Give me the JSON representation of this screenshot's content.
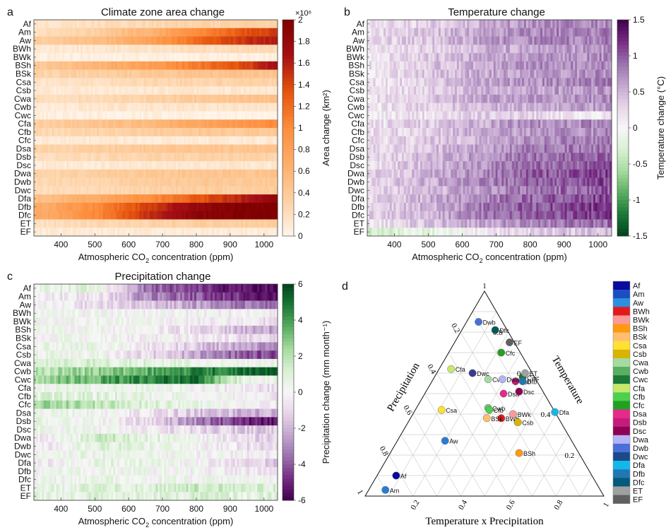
{
  "climate_zones": [
    "Af",
    "Am",
    "Aw",
    "BWh",
    "BWk",
    "BSh",
    "BSk",
    "Csa",
    "Csb",
    "Cwa",
    "Cwb",
    "Cwc",
    "Cfa",
    "Cfb",
    "Cfc",
    "Dsa",
    "Dsb",
    "Dsc",
    "Dwa",
    "Dwb",
    "Dwc",
    "Dfa",
    "Dfb",
    "Dfc",
    "ET",
    "EF"
  ],
  "chart_data": [
    {
      "panel": "a",
      "type": "heatmap",
      "title": "Climate zone area change",
      "xlabel_main": "Atmospheric CO",
      "xlabel_sub": "2",
      "xlabel_tail": " concentration (ppm)",
      "x_ticks": [
        "400",
        "500",
        "600",
        "700",
        "800",
        "900",
        "1000"
      ],
      "x_range": [
        320,
        1040
      ],
      "colorbar": {
        "label": "Area change (km²)",
        "exponent": "×10⁶",
        "ticks": [
          "2",
          "1.8",
          "1.6",
          "1.4",
          "1.2",
          "1",
          "0.8",
          "0.6",
          "0.4",
          "0.2",
          "0"
        ],
        "range": [
          0,
          2
        ],
        "colors": [
          "#fff5eb",
          "#fdd0a2",
          "#fdae6b",
          "#fd8d3c",
          "#e6550d",
          "#a50f15",
          "#7f0000"
        ]
      },
      "row_values_at_co2": {
        "co2": [
          350,
          500,
          650,
          800,
          950,
          1030
        ],
        "Af": [
          0.15,
          0.2,
          0.25,
          0.3,
          0.3,
          0.3
        ],
        "Am": [
          0.2,
          0.35,
          0.6,
          1.0,
          1.35,
          1.45
        ],
        "Aw": [
          0.35,
          0.5,
          0.75,
          1.2,
          1.5,
          1.6
        ],
        "BWh": [
          0.1,
          0.12,
          0.15,
          0.2,
          0.25,
          0.25
        ],
        "BWk": [
          0.05,
          0.05,
          0.05,
          0.05,
          0.05,
          0.05
        ],
        "BSh": [
          0.4,
          0.6,
          0.8,
          1.1,
          1.4,
          1.7
        ],
        "BSk": [
          0.3,
          0.35,
          0.4,
          0.45,
          0.45,
          0.45
        ],
        "Csa": [
          0.15,
          0.2,
          0.25,
          0.3,
          0.3,
          0.3
        ],
        "Csb": [
          0.1,
          0.1,
          0.12,
          0.12,
          0.12,
          0.12
        ],
        "Cwa": [
          0.2,
          0.25,
          0.3,
          0.4,
          0.45,
          0.5
        ],
        "Cwb": [
          0.1,
          0.12,
          0.15,
          0.15,
          0.15,
          0.15
        ],
        "Cwc": [
          0.05,
          0.05,
          0.05,
          0.03,
          0.01,
          0.02
        ],
        "Cfa": [
          0.35,
          0.45,
          0.55,
          0.75,
          0.9,
          1.0
        ],
        "Cfb": [
          0.25,
          0.3,
          0.35,
          0.4,
          0.4,
          0.4
        ],
        "Cfc": [
          0.1,
          0.1,
          0.1,
          0.1,
          0.1,
          0.1
        ],
        "Dsa": [
          0.3,
          0.35,
          0.4,
          0.45,
          0.45,
          0.45
        ],
        "Dsb": [
          0.2,
          0.25,
          0.3,
          0.3,
          0.3,
          0.3
        ],
        "Dsc": [
          0.1,
          0.1,
          0.12,
          0.12,
          0.12,
          0.12
        ],
        "Dwa": [
          0.3,
          0.35,
          0.4,
          0.45,
          0.45,
          0.45
        ],
        "Dwb": [
          0.25,
          0.3,
          0.35,
          0.4,
          0.4,
          0.4
        ],
        "Dwc": [
          0.2,
          0.25,
          0.3,
          0.35,
          0.35,
          0.35
        ],
        "Dfa": [
          0.5,
          0.7,
          0.95,
          1.3,
          1.6,
          1.8
        ],
        "Dfb": [
          0.7,
          1.0,
          1.4,
          1.8,
          2.0,
          2.0
        ],
        "Dfc": [
          0.7,
          1.0,
          1.5,
          1.9,
          2.0,
          2.0
        ],
        "ET": [
          0.2,
          0.25,
          0.3,
          0.35,
          0.35,
          0.35
        ],
        "EF": [
          0.1,
          0.1,
          0.1,
          0.1,
          0.1,
          0.1
        ]
      }
    },
    {
      "panel": "b",
      "type": "heatmap",
      "title": "Temperature change",
      "xlabel_main": "Atmospheric CO",
      "xlabel_sub": "2",
      "xlabel_tail": " concentration (ppm)",
      "x_ticks": [
        "400",
        "500",
        "600",
        "700",
        "800",
        "900",
        "1000"
      ],
      "x_range": [
        320,
        1040
      ],
      "colorbar": {
        "label": "Temperature change (°C)",
        "ticks": [
          "1.5",
          "1",
          "0.5",
          "0",
          "-0.5",
          "-1",
          "-1.5"
        ],
        "range": [
          -1.5,
          1.5
        ],
        "colors": [
          "#00441b",
          "#1b7837",
          "#5aae61",
          "#a6dba0",
          "#d9f0d3",
          "#f7f7f7",
          "#e7d4e8",
          "#c2a5cf",
          "#9970ab",
          "#762a83",
          "#40004b"
        ]
      },
      "row_values_at_co2": {
        "co2": [
          350,
          500,
          650,
          800,
          950,
          1030
        ],
        "Af": [
          0.15,
          0.3,
          0.55,
          0.7,
          0.75,
          0.8
        ],
        "Am": [
          0.25,
          0.4,
          0.6,
          0.75,
          0.8,
          0.85
        ],
        "Aw": [
          0.25,
          0.4,
          0.6,
          0.75,
          0.8,
          0.85
        ],
        "BWh": [
          0.15,
          0.3,
          0.5,
          0.6,
          0.65,
          0.7
        ],
        "BWk": [
          0.2,
          0.35,
          0.55,
          0.65,
          0.7,
          0.75
        ],
        "BSh": [
          0.2,
          0.35,
          0.55,
          0.7,
          0.75,
          0.8
        ],
        "BSk": [
          0.2,
          0.35,
          0.55,
          0.65,
          0.7,
          0.75
        ],
        "Csa": [
          0.2,
          0.35,
          0.55,
          0.7,
          0.75,
          0.8
        ],
        "Csb": [
          0.15,
          0.3,
          0.5,
          0.6,
          0.65,
          0.7
        ],
        "Cwa": [
          0.2,
          0.35,
          0.55,
          0.65,
          0.7,
          0.75
        ],
        "Cwb": [
          0.15,
          0.3,
          0.45,
          0.55,
          0.6,
          0.65
        ],
        "Cwc": [
          0.1,
          0.2,
          0.3,
          0.3,
          0.1,
          0.15
        ],
        "Cfa": [
          0.2,
          0.35,
          0.55,
          0.7,
          0.75,
          0.8
        ],
        "Cfb": [
          0.2,
          0.35,
          0.55,
          0.65,
          0.7,
          0.75
        ],
        "Cfc": [
          0.2,
          0.35,
          0.55,
          0.7,
          0.8,
          0.85
        ],
        "Dsa": [
          0.25,
          0.4,
          0.6,
          0.8,
          0.85,
          0.9
        ],
        "Dsb": [
          0.25,
          0.45,
          0.65,
          0.85,
          0.9,
          0.95
        ],
        "Dsc": [
          0.25,
          0.45,
          0.7,
          0.9,
          1.0,
          1.05
        ],
        "Dwa": [
          0.3,
          0.5,
          0.75,
          0.95,
          1.05,
          1.1
        ],
        "Dwb": [
          0.3,
          0.5,
          0.75,
          0.95,
          1.05,
          1.1
        ],
        "Dwc": [
          0.25,
          0.45,
          0.65,
          0.85,
          0.95,
          1.0
        ],
        "Dfa": [
          0.3,
          0.5,
          0.75,
          0.95,
          1.05,
          1.1
        ],
        "Dfb": [
          0.3,
          0.5,
          0.8,
          1.0,
          1.1,
          1.15
        ],
        "Dfc": [
          0.3,
          0.5,
          0.8,
          1.0,
          1.1,
          1.2
        ],
        "ET": [
          0.2,
          0.4,
          0.6,
          0.75,
          0.85,
          0.9
        ],
        "EF": [
          -0.3,
          -0.2,
          0.15,
          0.3,
          0.35,
          0.45
        ]
      }
    },
    {
      "panel": "c",
      "type": "heatmap",
      "title": "Precipitation change",
      "xlabel_main": "Atmospheric CO",
      "xlabel_sub": "2",
      "xlabel_tail": " concentration (ppm)",
      "x_ticks": [
        "400",
        "500",
        "600",
        "700",
        "800",
        "900",
        "1000"
      ],
      "x_range": [
        320,
        1040
      ],
      "colorbar": {
        "label": "Precipitation change (mm month⁻¹)",
        "ticks": [
          "6",
          "4",
          "2",
          "0",
          "-2",
          "-4",
          "-6"
        ],
        "range": [
          -6,
          6
        ],
        "colors": [
          "#40004b",
          "#762a83",
          "#9970ab",
          "#c2a5cf",
          "#e7d4e8",
          "#f7f7f7",
          "#d9f0d3",
          "#a6dba0",
          "#5aae61",
          "#1b7837",
          "#00441b"
        ]
      },
      "row_values_at_co2": {
        "co2": [
          350,
          500,
          650,
          800,
          950,
          1030
        ],
        "Af": [
          0.5,
          0.8,
          -3.5,
          -4.5,
          -5.5,
          -5.8
        ],
        "Am": [
          -0.5,
          -0.5,
          -3.0,
          -4.0,
          -5.0,
          -5.5
        ],
        "Aw": [
          -0.3,
          -0.8,
          -1.5,
          -2.5,
          -3.5,
          -4.0
        ],
        "BWh": [
          0.1,
          0.1,
          0.0,
          -0.1,
          -0.2,
          -0.3
        ],
        "BWk": [
          0.2,
          0.2,
          0.1,
          -0.2,
          -0.5,
          -0.8
        ],
        "BSh": [
          0.3,
          0.2,
          -0.2,
          -1.0,
          -2.0,
          -2.5
        ],
        "BSk": [
          0.2,
          0.1,
          -0.1,
          -0.5,
          -1.0,
          -1.2
        ],
        "Csa": [
          0.5,
          0.5,
          -0.5,
          -1.5,
          -2.5,
          -3.0
        ],
        "Csb": [
          0.5,
          0.3,
          -1.0,
          -2.5,
          -4.0,
          -4.5
        ],
        "Cwa": [
          0.8,
          1.0,
          0.8,
          0.5,
          0.3,
          0.5
        ],
        "Cwb": [
          2.0,
          2.5,
          3.5,
          4.5,
          5.0,
          5.2
        ],
        "Cwc": [
          2.5,
          3.5,
          4.5,
          5.0,
          0.3,
          0.3
        ],
        "Cfa": [
          0.3,
          0.5,
          0.3,
          0.0,
          -0.5,
          -0.8
        ],
        "Cfb": [
          0.8,
          0.8,
          0.5,
          0.3,
          0.0,
          -0.5
        ],
        "Cfc": [
          2.5,
          1.8,
          1.0,
          0.5,
          0.0,
          -0.5
        ],
        "Dsa": [
          0.3,
          0.2,
          -0.5,
          -1.5,
          -2.0,
          -2.2
        ],
        "Dsb": [
          0.5,
          0.2,
          -1.0,
          -3.0,
          -5.0,
          -5.5
        ],
        "Dsc": [
          0.3,
          0.2,
          -0.5,
          -1.0,
          -1.5,
          -1.5
        ],
        "Dwa": [
          -0.5,
          1.5,
          1.0,
          0.0,
          -1.0,
          -1.2
        ],
        "Dwb": [
          -0.5,
          1.0,
          0.5,
          0.0,
          -0.8,
          -1.0
        ],
        "Dwc": [
          0.2,
          0.5,
          0.3,
          0.0,
          -0.3,
          -0.5
        ],
        "Dfa": [
          -0.5,
          0.8,
          0.5,
          0.0,
          -1.0,
          -1.5
        ],
        "Dfb": [
          0.2,
          0.3,
          0.2,
          0.0,
          -0.5,
          -0.8
        ],
        "Dfc": [
          0.3,
          0.5,
          0.3,
          0.2,
          0.0,
          0.0
        ],
        "ET": [
          0.5,
          0.8,
          1.0,
          1.5,
          1.2,
          1.0
        ],
        "EF": [
          0.5,
          0.8,
          0.8,
          1.0,
          0.8,
          0.8
        ]
      }
    },
    {
      "panel": "d",
      "type": "scatter",
      "chart_kind": "ternary",
      "axis_left": "Precipitation",
      "axis_right": "Temperature",
      "axis_bottom": "Temperature x Precipitation",
      "apex_label": "1",
      "right_ticks": [
        "0.8",
        "0.6",
        "0.4",
        "0.2"
      ],
      "bottom_ticks": [
        "0.2",
        "0.4",
        "0.6",
        "0.8",
        "1"
      ],
      "left_ticks": [
        "0.2",
        "0.4",
        "0.6",
        "0.8",
        "1"
      ],
      "points": [
        {
          "label": "Af",
          "temperature": 0.1,
          "precipitation": 0.82,
          "color": "#0a0a9e"
        },
        {
          "label": "Am",
          "temperature": 0.03,
          "precipitation": 0.9,
          "color": "#2c7bd6"
        },
        {
          "label": "Aw",
          "temperature": 0.27,
          "precipitation": 0.53,
          "color": "#2c7bd6"
        },
        {
          "label": "BWh",
          "temperature": 0.38,
          "precipitation": 0.24,
          "color": "#e31a1c"
        },
        {
          "label": "BWk",
          "temperature": 0.4,
          "precipitation": 0.18,
          "color": "#fb9a99"
        },
        {
          "label": "BSh",
          "temperature": 0.21,
          "precipitation": 0.25,
          "color": "#ff9912"
        },
        {
          "label": "BSk",
          "temperature": 0.38,
          "precipitation": 0.3,
          "color": "#fdbf6f"
        },
        {
          "label": "Csa",
          "temperature": 0.42,
          "precipitation": 0.47,
          "color": "#ffe033"
        },
        {
          "label": "Csb",
          "temperature": 0.36,
          "precipitation": 0.18,
          "color": "#d8b400"
        },
        {
          "label": "Cwa",
          "temperature": 0.57,
          "precipitation": 0.2,
          "color": "#a6dba0"
        },
        {
          "label": "Cwb",
          "temperature": 0.43,
          "precipitation": 0.27,
          "color": "#74c476"
        },
        {
          "label": "Cwc",
          "temperature": 0.58,
          "precipitation": 0.05,
          "color": "#1b7837"
        },
        {
          "label": "Cfa",
          "temperature": 0.62,
          "precipitation": 0.33,
          "color": "#c7e96a"
        },
        {
          "label": "Cfb",
          "temperature": 0.42,
          "precipitation": 0.27,
          "color": "#4dd04d"
        },
        {
          "label": "Cfc",
          "temperature": 0.7,
          "precipitation": 0.08,
          "color": "#22a022"
        },
        {
          "label": "Dsa",
          "temperature": 0.5,
          "precipitation": 0.17,
          "color": "#e7298a"
        },
        {
          "label": "Dsb",
          "temperature": 0.56,
          "precipitation": 0.09,
          "color": "#c51b7d"
        },
        {
          "label": "Dsc",
          "temperature": 0.51,
          "precipitation": 0.1,
          "color": "#8e0152"
        },
        {
          "label": "Dwa",
          "temperature": 0.57,
          "precipitation": 0.14,
          "color": "#b3b3f5"
        },
        {
          "label": "Dwb",
          "temperature": 0.85,
          "precipitation": 0.1,
          "color": "#4a6fd8"
        },
        {
          "label": "Dwc",
          "temperature": 0.6,
          "precipitation": 0.25,
          "color": "#3a3a90"
        },
        {
          "label": "Dfa",
          "temperature": 0.41,
          "precipitation": 0.0,
          "color": "#12b8e8"
        },
        {
          "label": "Dfb",
          "temperature": 0.56,
          "precipitation": 0.06,
          "color": "#1f78b4"
        },
        {
          "label": "Dfc",
          "temperature": 0.81,
          "precipitation": 0.05,
          "color": "#045a5a"
        },
        {
          "label": "ET",
          "temperature": 0.6,
          "precipitation": 0.03,
          "color": "#a0a0a0"
        },
        {
          "label": "EF",
          "temperature": 0.75,
          "precipitation": 0.02,
          "color": "#606060"
        }
      ]
    }
  ],
  "panel_labels": [
    "a",
    "b",
    "c",
    "d"
  ],
  "legend": {
    "placement": "right",
    "items": [
      {
        "label": "Af",
        "color": "#0a0a9e"
      },
      {
        "label": "Am",
        "color": "#1a4fc4"
      },
      {
        "label": "Aw",
        "color": "#2c8fe0"
      },
      {
        "label": "BWh",
        "color": "#e31a1c"
      },
      {
        "label": "BWk",
        "color": "#fb9a99"
      },
      {
        "label": "BSh",
        "color": "#ff9912"
      },
      {
        "label": "BSk",
        "color": "#fdbf6f"
      },
      {
        "label": "Csa",
        "color": "#ffe033"
      },
      {
        "label": "Csb",
        "color": "#d8b400"
      },
      {
        "label": "Cwa",
        "color": "#a6dba0"
      },
      {
        "label": "Cwb",
        "color": "#5aae61"
      },
      {
        "label": "Cwc",
        "color": "#1b7837"
      },
      {
        "label": "Cfa",
        "color": "#c7e96a"
      },
      {
        "label": "Cfb",
        "color": "#4dd04d"
      },
      {
        "label": "Cfc",
        "color": "#22a022"
      },
      {
        "label": "Dsa",
        "color": "#e7298a"
      },
      {
        "label": "Dsb",
        "color": "#c51b7d"
      },
      {
        "label": "Dsc",
        "color": "#8e0152"
      },
      {
        "label": "Dwa",
        "color": "#b3b3f5"
      },
      {
        "label": "Dwb",
        "color": "#4a6fd8"
      },
      {
        "label": "Dwc",
        "color": "#1a4a8a"
      },
      {
        "label": "Dfa",
        "color": "#12b8e8"
      },
      {
        "label": "Dfb",
        "color": "#1f78b4"
      },
      {
        "label": "Dfc",
        "color": "#045a7a"
      },
      {
        "label": "ET",
        "color": "#a0a0a0"
      },
      {
        "label": "EF",
        "color": "#606060"
      }
    ]
  }
}
